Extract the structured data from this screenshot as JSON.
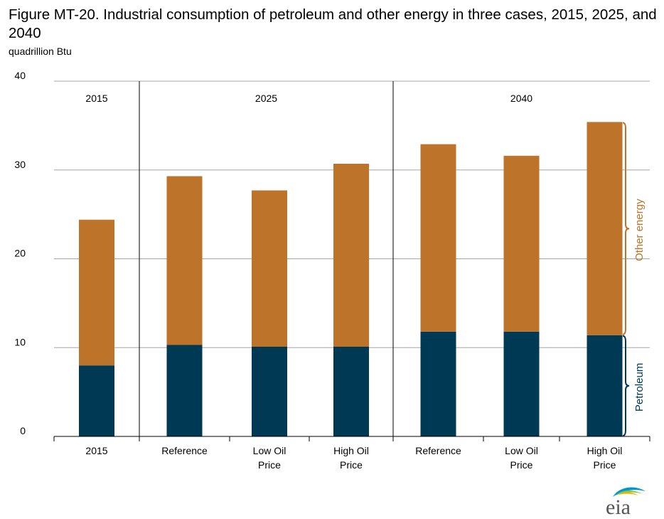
{
  "title": "Figure MT-20. Industrial consumption of petroleum and other energy in three cases, 2015, 2025, and 2040",
  "units": "quadrillion Btu",
  "logo_text": "eia",
  "colors": {
    "petroleum": "#003953",
    "other_energy": "#bd732a",
    "grid": "#a6a6a6",
    "axis": "#000000"
  },
  "chart_data": {
    "type": "bar",
    "stacked": true,
    "ylim": [
      0,
      40
    ],
    "yticks": [
      0,
      10,
      20,
      30,
      40
    ],
    "grid": true,
    "groups": [
      {
        "label": "2015",
        "size": 1
      },
      {
        "label": "2025",
        "size": 3
      },
      {
        "label": "2040",
        "size": 3
      }
    ],
    "categories": [
      "2015",
      "Reference",
      "Low Oil\nPrice",
      "High Oil\nPrice",
      "Reference",
      "Low Oil\nPrice",
      "High Oil\nPrice"
    ],
    "series": [
      {
        "name": "Petroleum",
        "values": [
          8.0,
          10.3,
          10.1,
          10.1,
          11.8,
          11.8,
          11.4
        ]
      },
      {
        "name": "Other energy",
        "values": [
          16.4,
          19.0,
          17.6,
          20.6,
          21.1,
          19.8,
          24.0
        ]
      }
    ],
    "legend": "right-side brackets"
  }
}
